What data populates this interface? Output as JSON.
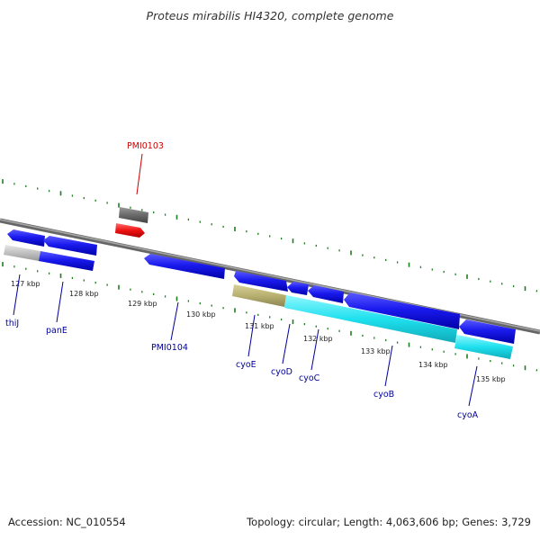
{
  "title": "Proteus mirabilis HI4320, complete genome",
  "footer": {
    "accession": "Accession: NC_010554",
    "summary": "Topology: circular; Length: 4,063,606 bp; Genes: 3,729"
  },
  "colors": {
    "background": "#ffffff",
    "backbone": "#888888",
    "ticks": "#1e7d1e",
    "gene_blue": "#1010dd",
    "gene_cyan": "#1ee0ee",
    "gene_khaki": "#b8b070",
    "gene_gray": "#c0c0c0",
    "gene_darkgray": "#6a6a6a",
    "gene_red": "#ee1111",
    "label_blue": "#00009a",
    "label_red": "#cc0000"
  },
  "scale_labels": [
    "127 kbp",
    "128 kbp",
    "129 kbp",
    "130 kbp",
    "131 kbp",
    "132 kbp",
    "133 kbp",
    "134 kbp",
    "135 kbp"
  ],
  "gene_labels": [
    {
      "text": "thiJ",
      "color": "label_blue"
    },
    {
      "text": "panE",
      "color": "label_blue"
    },
    {
      "text": "PMI0104",
      "color": "label_blue"
    },
    {
      "text": "cyoE",
      "color": "label_blue"
    },
    {
      "text": "cyoD",
      "color": "label_blue"
    },
    {
      "text": "cyoC",
      "color": "label_blue"
    },
    {
      "text": "cyoB",
      "color": "label_blue"
    },
    {
      "text": "cyoA",
      "color": "label_blue"
    },
    {
      "text": "PMI0103",
      "color": "label_red"
    }
  ]
}
